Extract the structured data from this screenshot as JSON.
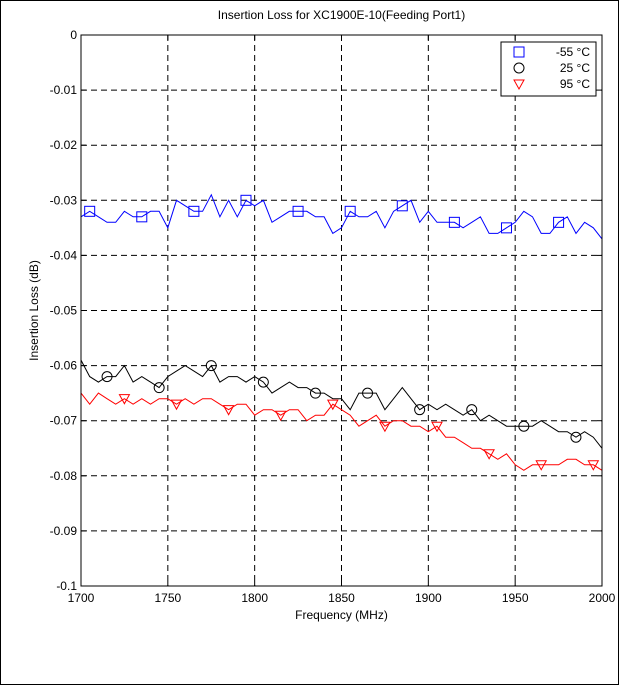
{
  "chart_data": {
    "type": "line",
    "title": "Insertion Loss for XC1900E-10(Feeding Port1)",
    "xlabel": "Frequency (MHz)",
    "ylabel": "Insertion Loss (dB)",
    "xlim": [
      1700,
      2000
    ],
    "ylim": [
      -0.1,
      0
    ],
    "x_ticks": [
      1700,
      1750,
      1800,
      1850,
      1900,
      1950,
      2000
    ],
    "x_tick_labels": [
      "1700",
      "1750",
      "1800",
      "1850",
      "1900",
      "1950",
      "2000"
    ],
    "y_ticks": [
      0,
      -0.01,
      -0.02,
      -0.03,
      -0.04,
      -0.05,
      -0.06,
      -0.07,
      -0.08,
      -0.09,
      -0.1
    ],
    "y_tick_labels": [
      "0",
      "-0.01",
      "-0.02",
      "-0.03",
      "-0.04",
      "-0.05",
      "-0.06",
      "-0.07",
      "-0.08",
      "-0.09",
      "-0.1"
    ],
    "grid": true,
    "legend_position": "top-right",
    "x": [
      1700,
      1705,
      1710,
      1715,
      1720,
      1725,
      1730,
      1735,
      1740,
      1745,
      1750,
      1755,
      1760,
      1765,
      1770,
      1775,
      1780,
      1785,
      1790,
      1795,
      1800,
      1805,
      1810,
      1815,
      1820,
      1825,
      1830,
      1835,
      1840,
      1845,
      1850,
      1855,
      1860,
      1865,
      1870,
      1875,
      1880,
      1885,
      1890,
      1895,
      1900,
      1905,
      1910,
      1915,
      1920,
      1925,
      1930,
      1935,
      1940,
      1945,
      1950,
      1955,
      1960,
      1965,
      1970,
      1975,
      1980,
      1985,
      1990,
      1995,
      2000
    ],
    "series": [
      {
        "name": "-55 °C",
        "color": "#0000ff",
        "marker": "square",
        "marker_x": [
          1705,
          1735,
          1765,
          1795,
          1825,
          1855,
          1885,
          1915,
          1945,
          1975
        ],
        "values": [
          -0.033,
          -0.032,
          -0.033,
          -0.034,
          -0.034,
          -0.032,
          -0.033,
          -0.033,
          -0.032,
          -0.032,
          -0.035,
          -0.03,
          -0.031,
          -0.032,
          -0.032,
          -0.029,
          -0.033,
          -0.03,
          -0.033,
          -0.03,
          -0.031,
          -0.03,
          -0.034,
          -0.033,
          -0.032,
          -0.032,
          -0.032,
          -0.033,
          -0.033,
          -0.036,
          -0.035,
          -0.032,
          -0.033,
          -0.033,
          -0.032,
          -0.035,
          -0.032,
          -0.031,
          -0.03,
          -0.034,
          -0.032,
          -0.034,
          -0.034,
          -0.034,
          -0.035,
          -0.034,
          -0.033,
          -0.036,
          -0.036,
          -0.035,
          -0.034,
          -0.032,
          -0.033,
          -0.036,
          -0.036,
          -0.034,
          -0.033,
          -0.036,
          -0.034,
          -0.035,
          -0.037
        ]
      },
      {
        "name": "25 °C",
        "color": "#000000",
        "marker": "circle",
        "marker_x": [
          1715,
          1745,
          1775,
          1805,
          1835,
          1865,
          1895,
          1925,
          1955,
          1985
        ],
        "values": [
          -0.059,
          -0.062,
          -0.063,
          -0.062,
          -0.062,
          -0.06,
          -0.063,
          -0.062,
          -0.063,
          -0.064,
          -0.062,
          -0.061,
          -0.06,
          -0.061,
          -0.062,
          -0.06,
          -0.063,
          -0.062,
          -0.062,
          -0.063,
          -0.062,
          -0.063,
          -0.065,
          -0.064,
          -0.063,
          -0.064,
          -0.064,
          -0.065,
          -0.065,
          -0.066,
          -0.066,
          -0.068,
          -0.065,
          -0.065,
          -0.065,
          -0.068,
          -0.066,
          -0.064,
          -0.066,
          -0.068,
          -0.067,
          -0.068,
          -0.067,
          -0.068,
          -0.069,
          -0.068,
          -0.07,
          -0.069,
          -0.07,
          -0.071,
          -0.071,
          -0.071,
          -0.071,
          -0.07,
          -0.071,
          -0.072,
          -0.072,
          -0.073,
          -0.072,
          -0.073,
          -0.075
        ]
      },
      {
        "name": "95 °C",
        "color": "#ff0000",
        "marker": "triangle-down",
        "marker_x": [
          1725,
          1755,
          1785,
          1815,
          1845,
          1875,
          1905,
          1935,
          1965,
          1995
        ],
        "values": [
          -0.065,
          -0.067,
          -0.065,
          -0.066,
          -0.067,
          -0.066,
          -0.067,
          -0.066,
          -0.067,
          -0.066,
          -0.066,
          -0.067,
          -0.066,
          -0.067,
          -0.066,
          -0.066,
          -0.067,
          -0.068,
          -0.067,
          -0.067,
          -0.069,
          -0.068,
          -0.068,
          -0.069,
          -0.068,
          -0.068,
          -0.07,
          -0.069,
          -0.069,
          -0.067,
          -0.068,
          -0.069,
          -0.071,
          -0.07,
          -0.069,
          -0.071,
          -0.07,
          -0.07,
          -0.071,
          -0.071,
          -0.072,
          -0.071,
          -0.073,
          -0.073,
          -0.074,
          -0.075,
          -0.075,
          -0.076,
          -0.077,
          -0.076,
          -0.078,
          -0.079,
          -0.078,
          -0.078,
          -0.078,
          -0.078,
          -0.077,
          -0.077,
          -0.078,
          -0.078,
          -0.079
        ]
      }
    ]
  }
}
